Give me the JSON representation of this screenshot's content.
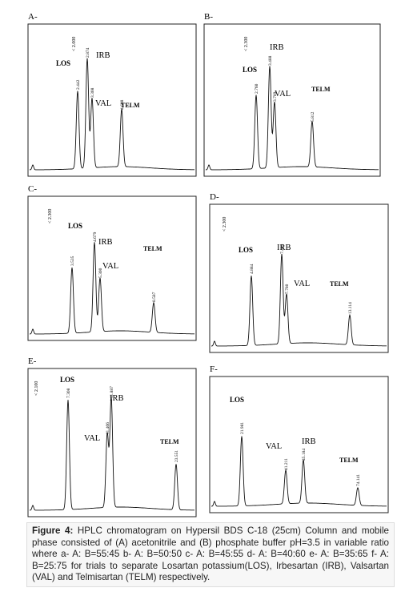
{
  "panels": [
    {
      "label": "A-",
      "marker": "< 2.000",
      "peaks": [
        {
          "name": "LOS",
          "time": "2.442"
        },
        {
          "name": "IRB",
          "time": "2.874"
        },
        {
          "name": "VAL",
          "time": "3.308"
        },
        {
          "name": "TELM",
          "time": "4.608"
        }
      ]
    },
    {
      "label": "B-",
      "marker": "< 2.300",
      "peaks": [
        {
          "name": "LOS",
          "time": "2.760"
        },
        {
          "name": "IRB",
          "time": "3.488"
        },
        {
          "name": "VAL",
          "time": "3.789"
        },
        {
          "name": "TELM",
          "time": "5.812"
        }
      ]
    },
    {
      "label": "C-",
      "marker": "< 2.300",
      "peaks": [
        {
          "name": "LOS",
          "time": "3.535"
        },
        {
          "name": "IRB",
          "time": "4.679"
        },
        {
          "name": "VAL",
          "time": "5.300"
        },
        {
          "name": "TELM",
          "time": "8.587"
        }
      ]
    },
    {
      "label": "D-",
      "marker": "< 2.300",
      "peaks": [
        {
          "name": "LOS",
          "time": "4.884"
        },
        {
          "name": "IRB",
          "time": "7.409"
        },
        {
          "name": "VAL",
          "time": "7.780"
        },
        {
          "name": "TELM",
          "time": "13.114"
        }
      ]
    },
    {
      "label": "E-",
      "marker": "< 2.100",
      "peaks": [
        {
          "name": "LOS",
          "time": "7.308"
        },
        {
          "name": "VAL",
          "time": "11.466"
        },
        {
          "name": "IRB",
          "time": "11.887"
        },
        {
          "name": "TELM",
          "time": "23.551"
        }
      ]
    },
    {
      "label": "F-",
      "peaks": [
        {
          "name": "LOS",
          "time": "21.981"
        },
        {
          "name": "VAL",
          "time": "41.211"
        },
        {
          "name": "IRB",
          "time": "45.184"
        },
        {
          "name": "TELM",
          "time": "74.141"
        }
      ]
    }
  ],
  "caption": {
    "label": "Figure 4:",
    "text": "HPLC chromatogram on Hypersil  BDS C-18 (25cm) Column and mobile phase consisted of (A) acetonitrile and (B) phosphate buffer pH=3.5 in variable ratio where   a- A: B=55:45  b- A: B=50:50 c- A: B=45:55  d- A: B=40:60 e- A: B=35:65 f- A: B=25:75 for trials to separate Losartan potassium(LOS), Irbesartan (IRB), Valsartan (VAL) and Telmisartan (TELM) respectively."
  }
}
